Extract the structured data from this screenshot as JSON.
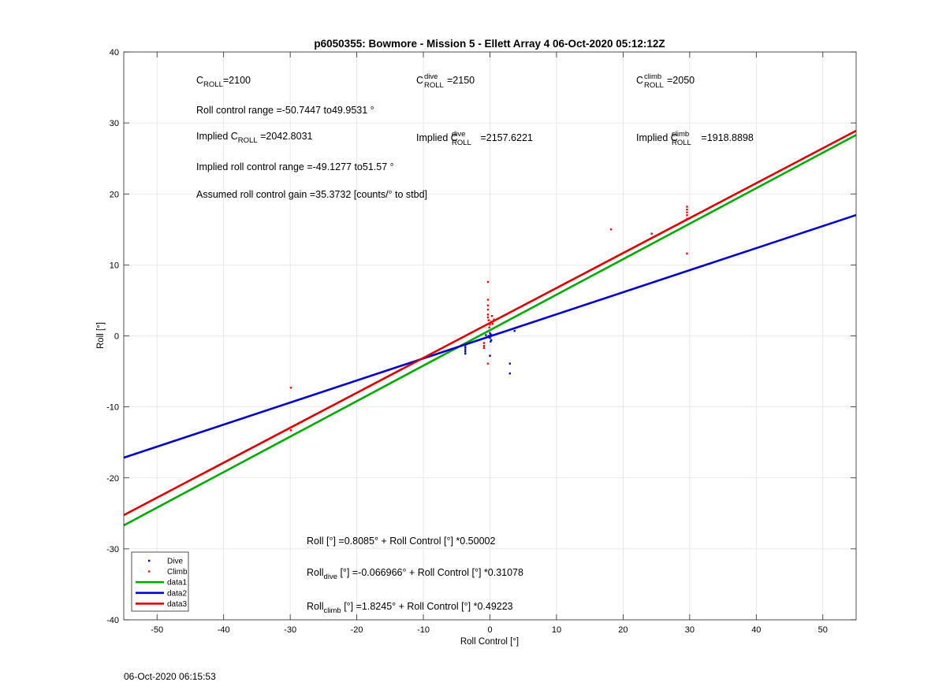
{
  "chart_data": {
    "type": "scatter",
    "title": "p6050355: Bowmore - Mission 5 - Ellett Array 4 06-Oct-2020 05:12:12Z",
    "xlabel": "Roll Control [°]",
    "ylabel": "Roll [°]",
    "xlim": [
      -55,
      55
    ],
    "ylim": [
      -40,
      40
    ],
    "xticks": [
      -50,
      -40,
      -30,
      -20,
      -10,
      0,
      10,
      20,
      30,
      40,
      50
    ],
    "yticks": [
      -40,
      -30,
      -20,
      -10,
      0,
      10,
      20,
      30,
      40
    ],
    "grid": true,
    "legend_position": "bottom-left",
    "colors": {
      "dive": "#0000cc",
      "climb": "#ff0000",
      "data1": "#00aa00",
      "data2": "#0000cc",
      "data3": "#dd0000"
    },
    "series": [
      {
        "name": "Dive",
        "kind": "points",
        "color": "#0000cc",
        "points": [
          [
            -3.7,
            -1.3
          ],
          [
            -3.7,
            -1.6
          ],
          [
            -3.7,
            -1.9
          ],
          [
            -3.7,
            -2.2
          ],
          [
            -3.7,
            -2.5
          ],
          [
            -0.6,
            0.1
          ],
          [
            -0.4,
            -0.2
          ],
          [
            -0.2,
            0.0
          ],
          [
            0.0,
            -0.3
          ],
          [
            0.1,
            0.2
          ],
          [
            0.2,
            -0.6
          ],
          [
            0.0,
            0.4
          ],
          [
            0.3,
            0.1
          ],
          [
            0.1,
            -0.8
          ],
          [
            0.0,
            -2.8
          ],
          [
            3.0,
            -3.9
          ],
          [
            3.0,
            -5.3
          ],
          [
            3.7,
            0.7
          ]
        ]
      },
      {
        "name": "Climb",
        "kind": "points",
        "color": "#ff0000",
        "points": [
          [
            -29.9,
            -7.3
          ],
          [
            -29.9,
            -12.9
          ],
          [
            -29.9,
            -13.3
          ],
          [
            -0.9,
            -1.0
          ],
          [
            -0.9,
            -1.4
          ],
          [
            -0.9,
            -1.7
          ],
          [
            -0.3,
            -3.9
          ],
          [
            -0.3,
            7.6
          ],
          [
            -0.3,
            5.1
          ],
          [
            -0.3,
            4.3
          ],
          [
            -0.3,
            3.7
          ],
          [
            -0.3,
            3.0
          ],
          [
            -0.3,
            2.6
          ],
          [
            -0.2,
            2.2
          ],
          [
            0.0,
            1.6
          ],
          [
            0.2,
            2.0
          ],
          [
            0.4,
            1.7
          ],
          [
            0.6,
            2.3
          ],
          [
            -0.1,
            1.2
          ],
          [
            0.3,
            2.8
          ],
          [
            18.2,
            15.0
          ],
          [
            24.3,
            14.4
          ],
          [
            29.6,
            11.6
          ],
          [
            29.6,
            16.5
          ],
          [
            29.6,
            17.0
          ],
          [
            29.6,
            17.4
          ],
          [
            29.6,
            17.8
          ],
          [
            29.6,
            18.2
          ]
        ]
      },
      {
        "name": "data1",
        "kind": "line",
        "color": "#00aa00",
        "intercept": 0.8085,
        "slope": 0.50002
      },
      {
        "name": "data2",
        "kind": "line",
        "color": "#0000cc",
        "intercept": -0.066966,
        "slope": 0.31078
      },
      {
        "name": "data3",
        "kind": "line",
        "color": "#dd0000",
        "intercept": 1.8245,
        "slope": 0.49223
      }
    ],
    "legend": [
      "Dive",
      "Climb",
      "data1",
      "data2",
      "data3"
    ]
  },
  "annotations": {
    "c_roll": {
      "base": "C",
      "sub": "ROLL",
      "value": "=2100"
    },
    "c_roll_dive": {
      "base": "C",
      "sup": "dive",
      "sub": "ROLL",
      "value": "=2150"
    },
    "c_roll_climb": {
      "base": "C",
      "sup": "climb",
      "sub": "ROLL",
      "value": "=2050"
    },
    "roll_control_range": "Roll control range =-50.7447 to49.9531 °",
    "implied_c_roll": {
      "prefix": "Implied C",
      "sub": "ROLL",
      "value": " =2042.8031"
    },
    "implied_c_roll_dive": {
      "prefix": "Implied C",
      "sup": "dive",
      "sub": "ROLL",
      "value": " =2157.6221"
    },
    "implied_c_roll_climb": {
      "prefix": "Implied C",
      "sup": "climb",
      "sub": "ROLL",
      "value": " =1918.8898"
    },
    "implied_range": "Implied roll control range =-49.1277 to51.57 °",
    "gain": "Assumed roll control gain =35.3732 [counts/° to stbd]",
    "eq1": "Roll [°] =0.8085° + Roll Control [°] *0.50002",
    "eq2": {
      "base": "Roll",
      "sub": "dive",
      "rest": " [°] =-0.066966° + Roll Control [°] *0.31078"
    },
    "eq3": {
      "base": "Roll",
      "sub": "climb",
      "rest": " [°] =1.8245° + Roll Control [°] *0.49223"
    }
  },
  "timestamp": "06-Oct-2020 06:15:53"
}
